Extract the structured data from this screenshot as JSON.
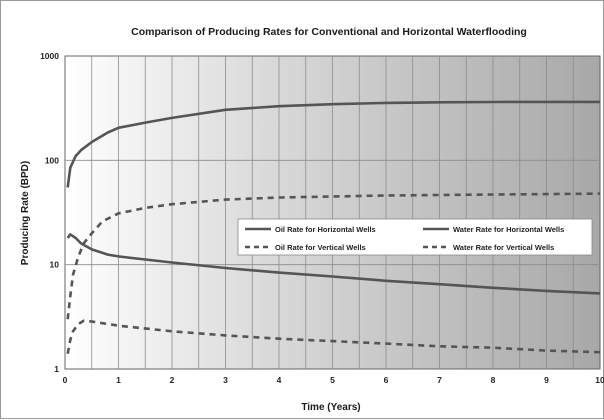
{
  "chart_data": {
    "type": "line",
    "title": "Comparison of Producing Rates for Conventional and Horizontal Waterflooding",
    "xlabel": "Time (Years)",
    "ylabel": "Producing Rate (BPD)",
    "xlim": [
      0,
      10
    ],
    "ylim": [
      1,
      1000
    ],
    "yscale": "log",
    "grid": true,
    "legend_position": "center-right",
    "x_ticks": [
      "0",
      "1",
      "2",
      "3",
      "4",
      "5",
      "6",
      "7",
      "8",
      "9",
      "10"
    ],
    "y_ticks": [
      "1",
      "10",
      "100",
      "1000"
    ],
    "series": [
      {
        "name": "Oil Rate for Horizontal Wells",
        "style": "solid",
        "color": "#555555",
        "x": [
          0.05,
          0.1,
          0.2,
          0.3,
          0.5,
          0.8,
          1,
          1.5,
          2,
          3,
          4,
          5,
          6,
          7,
          8,
          9,
          10
        ],
        "y": [
          18,
          19.5,
          18,
          16,
          14,
          12.5,
          12,
          11.2,
          10.5,
          9.3,
          8.4,
          7.7,
          7,
          6.5,
          6,
          5.6,
          5.3
        ]
      },
      {
        "name": "Water Rate for Horizontal Wells",
        "style": "solid",
        "color": "#555555",
        "x": [
          0.05,
          0.1,
          0.2,
          0.3,
          0.5,
          0.8,
          1,
          1.5,
          2,
          3,
          4,
          5,
          6,
          7,
          8,
          9,
          10
        ],
        "y": [
          55,
          85,
          110,
          125,
          150,
          185,
          205,
          230,
          255,
          305,
          330,
          345,
          355,
          360,
          362,
          363,
          363
        ]
      },
      {
        "name": "Oil Rate for Vertical Wells",
        "style": "dashed",
        "color": "#555555",
        "x": [
          0.05,
          0.1,
          0.15,
          0.25,
          0.35,
          0.5,
          0.8,
          1,
          2,
          3,
          4,
          5,
          6,
          7,
          8,
          9,
          10
        ],
        "y": [
          1.4,
          1.9,
          2.3,
          2.7,
          2.9,
          2.85,
          2.7,
          2.6,
          2.3,
          2.1,
          1.95,
          1.85,
          1.75,
          1.65,
          1.6,
          1.5,
          1.45
        ]
      },
      {
        "name": "Water Rate for Vertical Wells",
        "style": "dashed",
        "color": "#555555",
        "x": [
          0.05,
          0.1,
          0.15,
          0.25,
          0.35,
          0.5,
          0.7,
          1,
          1.5,
          2,
          3,
          4,
          5,
          6,
          7,
          8,
          9,
          10
        ],
        "y": [
          3,
          5,
          8,
          12,
          16,
          20,
          26,
          31,
          35,
          38,
          42,
          44,
          45,
          46,
          46.5,
          47,
          47.5,
          48
        ]
      }
    ]
  }
}
